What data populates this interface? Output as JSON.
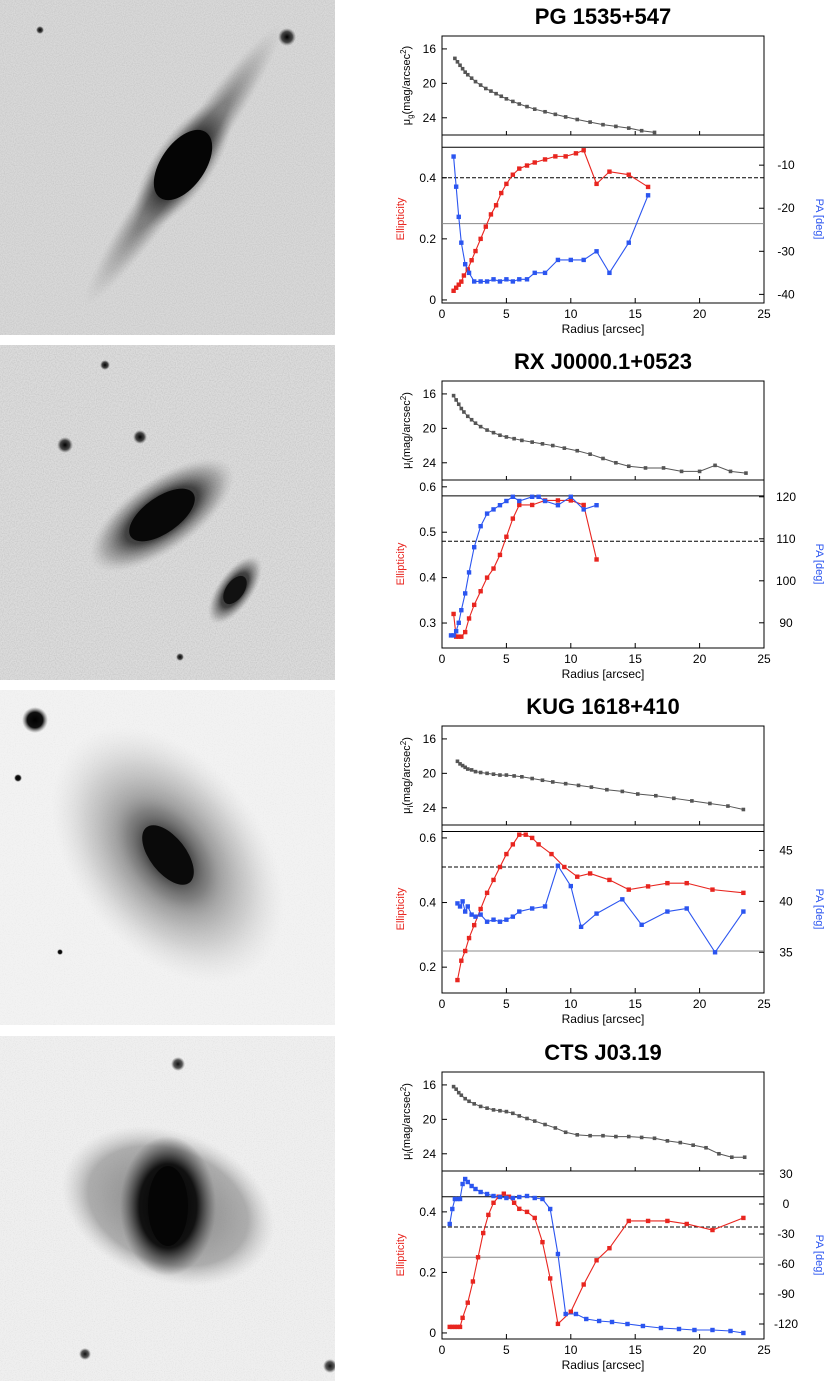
{
  "colors": {
    "ellipticity": "#e8251f",
    "pa": "#2b55f0",
    "profile": "#555555",
    "axis": "#000000"
  },
  "chart_data": [
    {
      "type": "line",
      "title": "PG 1535+547",
      "xlabel": "Radius [arcsec]",
      "xlim": [
        0,
        25
      ],
      "x_ticks": [
        "0",
        "5",
        "10",
        "15",
        "20",
        "25"
      ],
      "top_panel": {
        "ylabel": "μg(mag/arcsec2)",
        "ylabel_main": "μ",
        "ylabel_sub": "g",
        "ylabel_unit": "(mag/arcsec",
        "ylabel_sup": "2",
        "ylabel_close": ")",
        "ylim": [
          26,
          14.5
        ],
        "y_ticks": [
          "16",
          "20",
          "24"
        ],
        "x": [
          1.0,
          1.2,
          1.4,
          1.6,
          1.8,
          2.0,
          2.3,
          2.6,
          3.0,
          3.4,
          3.8,
          4.2,
          4.6,
          5.0,
          5.5,
          6.0,
          6.6,
          7.2,
          8.0,
          8.8,
          9.6,
          10.5,
          11.5,
          12.5,
          13.5,
          14.5,
          15.5,
          16.5
        ],
        "y": [
          17.1,
          17.5,
          17.9,
          18.3,
          18.7,
          19.0,
          19.4,
          19.8,
          20.2,
          20.6,
          20.9,
          21.2,
          21.5,
          21.8,
          22.1,
          22.4,
          22.7,
          23.0,
          23.3,
          23.6,
          23.9,
          24.2,
          24.5,
          24.8,
          25.0,
          25.2,
          25.5,
          25.7
        ]
      },
      "bottom_panel": {
        "ylabel_left": "Ellipticity",
        "ylabel_right": "PA [deg]",
        "ylim": [
          -0.01,
          0.54
        ],
        "y_ticks": [
          "0",
          "0.2",
          "0.4"
        ],
        "y2lim": [
          -42,
          -3
        ],
        "y2_ticks": [
          "-10",
          "-20",
          "-30",
          "-40"
        ],
        "hlines": [
          {
            "axis": "left",
            "y": 0.5,
            "style": "solid"
          },
          {
            "axis": "left",
            "y": 0.4,
            "style": "dashed"
          },
          {
            "axis": "left",
            "y": 0.25,
            "style": "solid-gray"
          }
        ],
        "series": [
          {
            "axis": "left",
            "x": [
              0.9,
              1.1,
              1.3,
              1.5,
              1.7,
              2.0,
              2.3,
              2.6,
              3.0,
              3.4,
              3.8,
              4.2,
              4.6,
              5.0,
              5.5,
              6.0,
              6.6,
              7.2,
              8.0,
              8.8,
              9.6,
              10.4,
              11.0,
              12.0,
              13.0,
              14.5,
              16.0
            ],
            "y": [
              0.03,
              0.04,
              0.05,
              0.06,
              0.08,
              0.1,
              0.13,
              0.16,
              0.2,
              0.24,
              0.28,
              0.31,
              0.35,
              0.38,
              0.41,
              0.43,
              0.44,
              0.45,
              0.46,
              0.47,
              0.47,
              0.48,
              0.49,
              0.38,
              0.42,
              0.41,
              0.37
            ]
          },
          {
            "axis": "right",
            "x": [
              0.9,
              1.1,
              1.3,
              1.5,
              1.8,
              2.1,
              2.5,
              3.0,
              3.5,
              4.0,
              4.5,
              5.0,
              5.5,
              6.0,
              6.6,
              7.2,
              8.0,
              9.0,
              10.0,
              11.0,
              12.0,
              13.0,
              14.5,
              16.0
            ],
            "y": [
              -8,
              -15,
              -22,
              -28,
              -33,
              -35,
              -37,
              -37,
              -37,
              -36.5,
              -37,
              -36.5,
              -37,
              -36.5,
              -36.5,
              -35,
              -35,
              -32,
              -32,
              -32,
              -30,
              -35,
              -28,
              -17
            ]
          }
        ]
      }
    },
    {
      "type": "line",
      "title": "RX J0000.1+0523",
      "xlabel": "Radius [arcsec]",
      "xlim": [
        0,
        25
      ],
      "x_ticks": [
        "0",
        "5",
        "10",
        "15",
        "20",
        "25"
      ],
      "top_panel": {
        "ylabel": "μi(mag/arcsec2)",
        "ylabel_main": "μ",
        "ylabel_sub": "i",
        "ylabel_unit": "(mag/arcsec",
        "ylabel_sup": "2",
        "ylabel_close": ")",
        "ylim": [
          26,
          14.5
        ],
        "y_ticks": [
          "16",
          "20",
          "24"
        ],
        "x": [
          0.9,
          1.1,
          1.3,
          1.5,
          1.7,
          2.0,
          2.3,
          2.6,
          3.0,
          3.5,
          4.0,
          4.5,
          5.0,
          5.6,
          6.2,
          7.0,
          7.8,
          8.6,
          9.5,
          10.5,
          11.5,
          12.5,
          13.5,
          14.5,
          15.8,
          17.2,
          18.6,
          20.0,
          21.2,
          22.4,
          23.6
        ],
        "y": [
          16.2,
          16.7,
          17.2,
          17.7,
          18.1,
          18.6,
          19.0,
          19.4,
          19.8,
          20.2,
          20.5,
          20.8,
          21.0,
          21.2,
          21.4,
          21.6,
          21.8,
          22.0,
          22.3,
          22.6,
          23.0,
          23.5,
          24.0,
          24.4,
          24.6,
          24.6,
          25.0,
          25.0,
          24.3,
          25.0,
          25.2
        ]
      },
      "bottom_panel": {
        "ylabel_left": "Ellipticity",
        "ylabel_right": "PA [deg]",
        "ylim": [
          0.245,
          0.615
        ],
        "y_ticks": [
          "0.3",
          "0.4",
          "0.5",
          "0.6"
        ],
        "y2lim": [
          84,
          124
        ],
        "y2_ticks": [
          "90",
          "100",
          "110",
          "120"
        ],
        "hlines": [
          {
            "axis": "left",
            "y": 0.58,
            "style": "solid"
          },
          {
            "axis": "left",
            "y": 0.48,
            "style": "dashed"
          }
        ],
        "series": [
          {
            "axis": "left",
            "x": [
              0.9,
              1.1,
              1.3,
              1.5,
              1.8,
              2.1,
              2.5,
              3.0,
              3.5,
              4.0,
              4.5,
              5.0,
              5.5,
              6.0,
              7.0,
              8.0,
              9.0,
              10.0,
              11.0,
              12.0
            ],
            "y": [
              0.32,
              0.27,
              0.27,
              0.27,
              0.28,
              0.31,
              0.34,
              0.37,
              0.4,
              0.42,
              0.45,
              0.49,
              0.53,
              0.56,
              0.56,
              0.57,
              0.57,
              0.57,
              0.56,
              0.44
            ]
          },
          {
            "axis": "right",
            "x": [
              0.7,
              0.9,
              1.1,
              1.3,
              1.5,
              1.8,
              2.1,
              2.5,
              3.0,
              3.5,
              4.0,
              4.5,
              5.0,
              5.5,
              6.0,
              7.0,
              7.5,
              8.0,
              9.0,
              10.0,
              11.0,
              12.0
            ],
            "y": [
              87,
              87,
              88,
              90,
              93,
              97,
              102,
              108,
              113,
              116,
              117,
              118,
              119,
              120,
              119,
              120,
              120,
              119,
              118,
              120,
              117,
              118
            ]
          }
        ]
      }
    },
    {
      "type": "line",
      "title": "KUG 1618+410",
      "xlabel": "Radius [arcsec]",
      "xlim": [
        0,
        25
      ],
      "x_ticks": [
        "0",
        "5",
        "10",
        "15",
        "20",
        "25"
      ],
      "top_panel": {
        "ylabel": "μi(mag/arcsec2)",
        "ylabel_main": "μ",
        "ylabel_sub": "i",
        "ylabel_unit": "(mag/arcsec",
        "ylabel_sup": "2",
        "ylabel_close": ")",
        "ylim": [
          26,
          14.5
        ],
        "y_ticks": [
          "16",
          "20",
          "24"
        ],
        "x": [
          1.2,
          1.4,
          1.6,
          1.8,
          2.0,
          2.3,
          2.6,
          3.0,
          3.5,
          4.0,
          4.5,
          5.0,
          5.6,
          6.2,
          7.0,
          7.8,
          8.6,
          9.6,
          10.6,
          11.6,
          12.8,
          14.0,
          15.2,
          16.6,
          18.0,
          19.4,
          20.8,
          22.2,
          23.4
        ],
        "y": [
          18.6,
          18.9,
          19.1,
          19.3,
          19.5,
          19.6,
          19.8,
          19.9,
          20.0,
          20.1,
          20.2,
          20.2,
          20.3,
          20.4,
          20.6,
          20.8,
          21.0,
          21.2,
          21.4,
          21.6,
          21.9,
          22.1,
          22.4,
          22.6,
          22.9,
          23.2,
          23.5,
          23.8,
          24.2
        ]
      },
      "bottom_panel": {
        "ylabel_left": "Ellipticity",
        "ylabel_right": "PA [deg]",
        "ylim": [
          0.12,
          0.64
        ],
        "y_ticks": [
          "0.2",
          "0.4",
          "0.6"
        ],
        "y2lim": [
          31,
          47.5
        ],
        "y2_ticks": [
          "35",
          "40",
          "45"
        ],
        "hlines": [
          {
            "axis": "left",
            "y": 0.62,
            "style": "solid"
          },
          {
            "axis": "left",
            "y": 0.51,
            "style": "dashed"
          },
          {
            "axis": "left",
            "y": 0.25,
            "style": "solid-gray"
          }
        ],
        "series": [
          {
            "axis": "left",
            "x": [
              1.2,
              1.5,
              1.8,
              2.1,
              2.5,
              3.0,
              3.5,
              4.0,
              4.5,
              5.0,
              5.5,
              6.0,
              6.5,
              7.0,
              7.5,
              8.5,
              9.5,
              10.5,
              11.5,
              13.0,
              14.5,
              16.0,
              17.5,
              19.0,
              21.0,
              23.4
            ],
            "y": [
              0.16,
              0.22,
              0.25,
              0.29,
              0.33,
              0.38,
              0.43,
              0.47,
              0.51,
              0.55,
              0.58,
              0.61,
              0.61,
              0.6,
              0.58,
              0.55,
              0.51,
              0.48,
              0.49,
              0.47,
              0.44,
              0.45,
              0.46,
              0.46,
              0.44,
              0.43
            ]
          },
          {
            "axis": "right",
            "x": [
              1.2,
              1.4,
              1.6,
              1.8,
              2.0,
              2.3,
              2.6,
              3.0,
              3.5,
              4.0,
              4.5,
              5.0,
              5.5,
              6.0,
              7.0,
              8.0,
              9.0,
              10.0,
              10.8,
              12.0,
              14.0,
              15.5,
              17.5,
              19.0,
              21.2,
              23.4
            ],
            "y": [
              39.8,
              39.5,
              40.0,
              39.0,
              39.5,
              38.7,
              38.5,
              38.7,
              38.0,
              38.2,
              38.0,
              38.2,
              38.5,
              39.0,
              39.3,
              39.5,
              43.5,
              41.5,
              37.5,
              38.8,
              40.2,
              37.7,
              39.0,
              39.3,
              35.0,
              39.0
            ]
          }
        ]
      }
    },
    {
      "type": "line",
      "title": "CTS J03.19",
      "xlabel": "Radius [arcsec]",
      "xlim": [
        0,
        25
      ],
      "x_ticks": [
        "0",
        "5",
        "10",
        "15",
        "20",
        "25"
      ],
      "top_panel": {
        "ylabel": "μi(mag/arcsec2)",
        "ylabel_main": "μ",
        "ylabel_sub": "i",
        "ylabel_unit": "(mag/arcsec",
        "ylabel_sup": "2",
        "ylabel_close": ")",
        "ylim": [
          26,
          14.5
        ],
        "y_ticks": [
          "16",
          "20",
          "24"
        ],
        "x": [
          0.9,
          1.1,
          1.3,
          1.5,
          1.8,
          2.1,
          2.5,
          3.0,
          3.5,
          4.0,
          4.5,
          5.0,
          5.5,
          6.0,
          6.6,
          7.2,
          8.0,
          8.8,
          9.6,
          10.5,
          11.5,
          12.5,
          13.5,
          14.5,
          15.5,
          16.5,
          17.5,
          18.5,
          19.5,
          20.5,
          21.5,
          22.5,
          23.5
        ],
        "y": [
          16.2,
          16.5,
          16.9,
          17.2,
          17.6,
          17.9,
          18.2,
          18.5,
          18.7,
          18.9,
          19.0,
          19.1,
          19.3,
          19.6,
          19.9,
          20.2,
          20.6,
          21.0,
          21.5,
          21.8,
          21.9,
          21.9,
          22.0,
          22.0,
          22.1,
          22.2,
          22.5,
          22.7,
          23.0,
          23.3,
          24.0,
          24.4,
          24.4
        ]
      },
      "bottom_panel": {
        "ylabel_left": "Ellipticity",
        "ylabel_right": "PA [deg]",
        "ylim": [
          -0.02,
          0.535
        ],
        "y_ticks": [
          "0",
          "0.2",
          "0.4"
        ],
        "y2lim": [
          -135,
          33
        ],
        "y2_ticks": [
          "30",
          "0",
          "-30",
          "-60",
          "-90",
          "-120"
        ],
        "hlines": [
          {
            "axis": "left",
            "y": 0.45,
            "style": "solid"
          },
          {
            "axis": "left",
            "y": 0.35,
            "style": "dashed"
          },
          {
            "axis": "left",
            "y": 0.25,
            "style": "solid-gray"
          }
        ],
        "series": [
          {
            "axis": "left",
            "x": [
              0.6,
              0.8,
              1.0,
              1.2,
              1.4,
              1.6,
              2.0,
              2.4,
              2.8,
              3.2,
              3.6,
              4.0,
              4.4,
              4.8,
              5.2,
              5.6,
              6.0,
              6.6,
              7.2,
              7.8,
              8.4,
              9.0,
              10.0,
              11.0,
              12.0,
              13.0,
              14.5,
              16.0,
              17.5,
              19.0,
              21.0,
              23.4
            ],
            "y": [
              0.02,
              0.02,
              0.02,
              0.02,
              0.02,
              0.05,
              0.1,
              0.17,
              0.25,
              0.33,
              0.39,
              0.43,
              0.45,
              0.46,
              0.45,
              0.43,
              0.41,
              0.4,
              0.38,
              0.3,
              0.18,
              0.03,
              0.07,
              0.16,
              0.24,
              0.28,
              0.37,
              0.37,
              0.37,
              0.36,
              0.34,
              0.38
            ]
          },
          {
            "axis": "right",
            "x": [
              0.6,
              0.8,
              1.0,
              1.2,
              1.4,
              1.6,
              1.8,
              2.0,
              2.3,
              2.6,
              3.0,
              3.5,
              4.0,
              4.5,
              5.0,
              5.5,
              6.0,
              6.6,
              7.2,
              7.8,
              8.4,
              9.0,
              9.6,
              10.4,
              11.2,
              12.2,
              13.2,
              14.4,
              15.6,
              17.0,
              18.4,
              19.6,
              21.0,
              22.4,
              23.4
            ],
            "y": [
              -20,
              -5,
              5,
              5,
              5,
              20,
              25,
              22,
              18,
              15,
              12,
              10,
              8,
              7,
              6,
              6,
              7,
              8,
              6,
              5,
              -5,
              -50,
              -110,
              -110,
              -115,
              -117,
              -118,
              -120,
              -122,
              -124,
              -125,
              -126,
              -126,
              -127,
              -129
            ]
          }
        ]
      }
    }
  ]
}
